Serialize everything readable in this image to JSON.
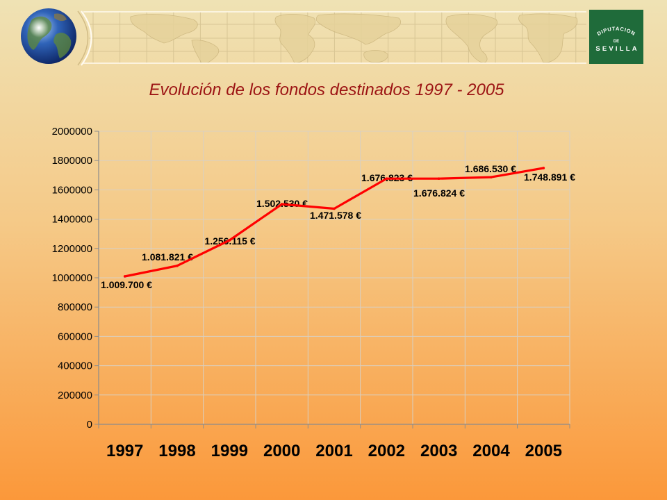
{
  "icons": {
    "globe": "globe-icon",
    "map": "world-map-icon"
  },
  "logo": {
    "arc_text": "DIPUTACION",
    "middle_text": "DE",
    "bottom_text": "SEVILLA"
  },
  "colors": {
    "background_top": "#efe2b4",
    "background_mid": "#f5c987",
    "background_bottom": "#fb983a",
    "title": "#9c1414",
    "logo_green": "#1f6b3a",
    "gridline": "#d9d0c2",
    "axis": "#8c8c8c"
  },
  "chart_data": {
    "type": "line",
    "title": "Evolución de los fondos destinados 1997 - 2005",
    "categories": [
      "1997",
      "1998",
      "1999",
      "2000",
      "2001",
      "2002",
      "2003",
      "2004",
      "2005"
    ],
    "series": [
      {
        "values": [
          1009700,
          1081821,
          1256115,
          1502530,
          1471578,
          1676823,
          1676824,
          1686530,
          1748891
        ],
        "data_labels": [
          "1.009.700 €",
          "1.081.821 €",
          "1.256.115 €",
          "1.502.530 €",
          "1.471.578 €",
          "1.676.823 €",
          "1.676.824 €",
          "1.686.530 €",
          "1.748.891 €"
        ],
        "color": "#ff0000"
      }
    ],
    "ylim": [
      0,
      2000000
    ],
    "y_tick_step": 200000,
    "y_tick_labels": [
      "0",
      "200000",
      "400000",
      "600000",
      "800000",
      "1000000",
      "1200000",
      "1400000",
      "1600000",
      "1800000",
      "2000000"
    ],
    "grid": true
  }
}
